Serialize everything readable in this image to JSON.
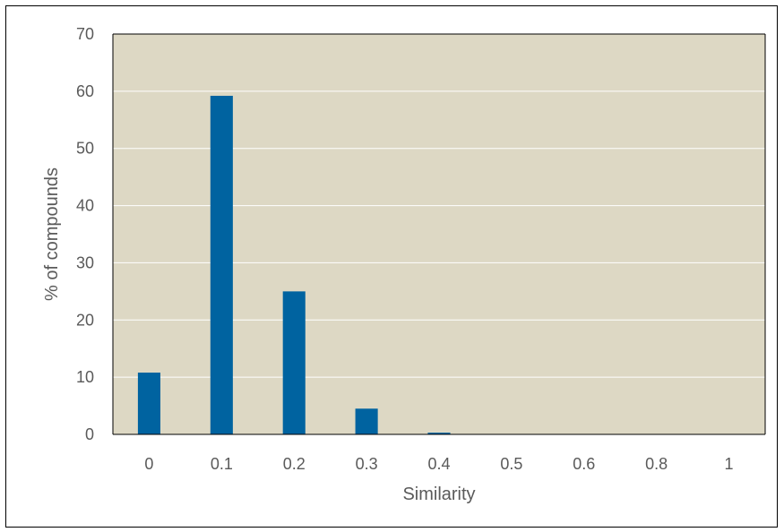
{
  "chart_data": {
    "type": "bar",
    "title": "",
    "xlabel": "Similarity",
    "ylabel": "% of compounds",
    "categories": [
      "0",
      "0.1",
      "0.2",
      "0.3",
      "0.4",
      "0.5",
      "0.6",
      "0.8",
      "1"
    ],
    "values": [
      10.8,
      59.2,
      25.0,
      4.5,
      0.3,
      0.0,
      0.0,
      0.0,
      0.0
    ],
    "ylim": [
      0,
      70
    ],
    "yticks": [
      "0",
      "10",
      "20",
      "30",
      "40",
      "50",
      "60",
      "70"
    ],
    "grid": true,
    "legend": "none",
    "colors": {
      "bar": "#0063a0",
      "plot_background": "#ddd8c4",
      "gridline": "#ffffff",
      "axis": "#000000"
    }
  }
}
